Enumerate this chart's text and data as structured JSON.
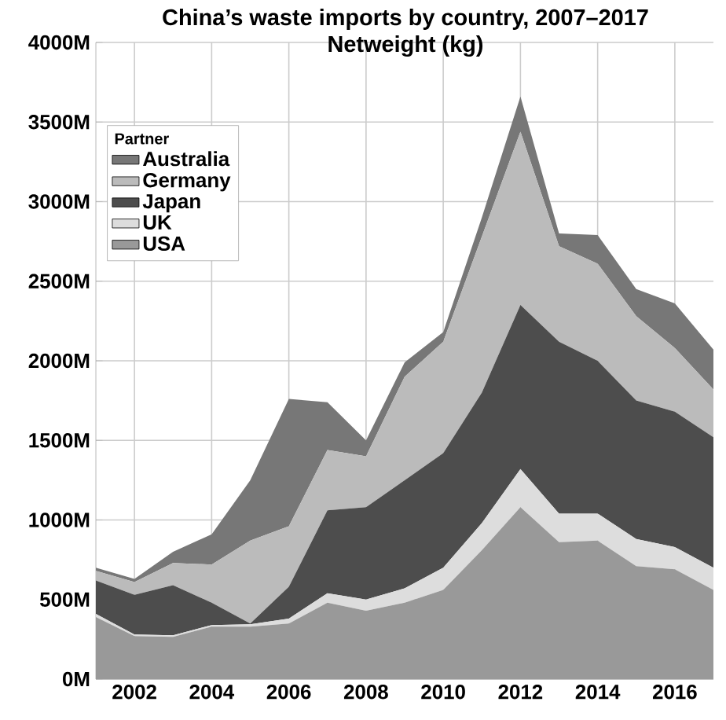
{
  "chart_data": {
    "type": "area",
    "title": "China’s waste imports by country, 2007–2017",
    "subtitle": "Netweight (kg)",
    "legend_title": "Partner",
    "x": [
      2001,
      2002,
      2003,
      2004,
      2005,
      2006,
      2007,
      2008,
      2009,
      2010,
      2011,
      2012,
      2013,
      2014,
      2015,
      2016,
      2017
    ],
    "stacked": true,
    "series": [
      {
        "name": "USA",
        "color": "#999999",
        "values": [
          390,
          270,
          265,
          330,
          330,
          350,
          480,
          430,
          480,
          560,
          810,
          1080,
          860,
          870,
          710,
          690,
          560
        ]
      },
      {
        "name": "UK",
        "color": "#dddddd",
        "values": [
          20,
          10,
          10,
          10,
          15,
          30,
          60,
          70,
          90,
          140,
          170,
          240,
          180,
          170,
          170,
          140,
          140
        ]
      },
      {
        "name": "Japan",
        "color": "#4d4d4d",
        "values": [
          210,
          250,
          315,
          140,
          5,
          200,
          520,
          580,
          680,
          720,
          820,
          1030,
          1080,
          960,
          870,
          850,
          820
        ]
      },
      {
        "name": "Germany",
        "color": "#bbbbbb",
        "values": [
          60,
          80,
          140,
          240,
          520,
          380,
          380,
          320,
          650,
          700,
          980,
          1090,
          600,
          610,
          530,
          400,
          300
        ]
      },
      {
        "name": "Australia",
        "color": "#777777",
        "values": [
          20,
          20,
          70,
          190,
          380,
          800,
          300,
          100,
          90,
          60,
          120,
          220,
          80,
          180,
          170,
          280,
          250
        ]
      }
    ],
    "xlim": [
      2001,
      2017
    ],
    "xticks": [
      2002,
      2004,
      2006,
      2008,
      2010,
      2012,
      2014,
      2016
    ],
    "ylim": [
      0,
      4000
    ],
    "yticks": [
      {
        "value": 0,
        "label": "0M"
      },
      {
        "value": 500,
        "label": "500M"
      },
      {
        "value": 1000,
        "label": "1000M"
      },
      {
        "value": 1500,
        "label": "1500M"
      },
      {
        "value": 2000,
        "label": "2000M"
      },
      {
        "value": 2500,
        "label": "2500M"
      },
      {
        "value": 3000,
        "label": "3000M"
      },
      {
        "value": 3500,
        "label": "3500M"
      },
      {
        "value": 4000,
        "label": "4000M"
      }
    ],
    "grid": true,
    "legend": "top left"
  }
}
